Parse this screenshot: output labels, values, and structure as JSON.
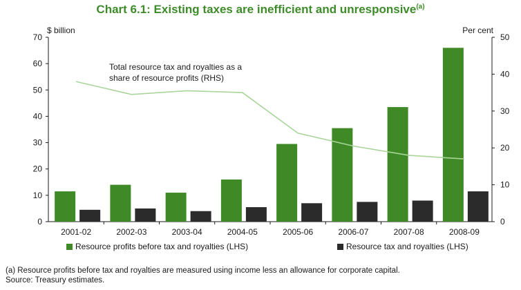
{
  "title": "Chart 6.1: Existing taxes are inefficient and unresponsive",
  "title_superscript": "(a)",
  "chart_data": {
    "type": "bar",
    "categories": [
      "2001-02",
      "2002-03",
      "2003-04",
      "2004-05",
      "2005-06",
      "2006-07",
      "2007-08",
      "2008-09"
    ],
    "series": [
      {
        "name": "Resource profits before tax and royalties (LHS)",
        "axis": "left",
        "kind": "bar",
        "color": "#3f8a26",
        "values": [
          11.5,
          14,
          11,
          16,
          29.5,
          35.5,
          43.5,
          66
        ]
      },
      {
        "name": "Resource tax and royalties (LHS)",
        "axis": "left",
        "kind": "bar",
        "color": "#2b2b2b",
        "values": [
          4.5,
          5,
          4,
          5.5,
          7,
          7.5,
          8,
          11.5
        ]
      },
      {
        "name": "",
        "axis": "right",
        "kind": "line",
        "color": "#a9d49a",
        "values": [
          38,
          34.5,
          35.5,
          35,
          24,
          20.5,
          18,
          17
        ]
      }
    ],
    "left_axis": {
      "unit_label": "$ billion",
      "ylim": [
        0,
        70
      ],
      "ticks": [
        0,
        10,
        20,
        30,
        40,
        50,
        60,
        70
      ]
    },
    "right_axis": {
      "unit_label": "Per cent",
      "ylim": [
        0,
        50
      ],
      "ticks": [
        0,
        10,
        20,
        30,
        40,
        50
      ]
    },
    "annotation": [
      "Total resource tax and royalties as a",
      "share of resource profits (RHS)"
    ],
    "grid": false,
    "legend_position": "bottom"
  },
  "legend": {
    "item1": "Resource profits before tax and royalties (LHS)",
    "item2": "Resource tax and royalties (LHS)"
  },
  "footnote": {
    "line1": "(a)  Resource profits before tax and royalties are measured using income less an allowance for corporate capital.",
    "line2": "Source: Treasury estimates."
  }
}
